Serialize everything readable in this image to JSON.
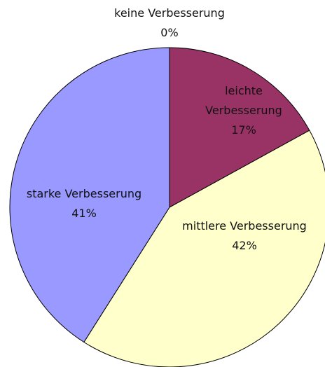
{
  "chart_data": {
    "type": "pie",
    "categories": [
      "keine Verbesserung",
      "leichte Verbesserung",
      "mittlere Verbesserung",
      "starke Verbesserung"
    ],
    "values": [
      0,
      17,
      42,
      41
    ],
    "value_labels": [
      "0%",
      "17%",
      "42%",
      "41%"
    ],
    "colors": [
      "#ffffff",
      "#993366",
      "#ffffcc",
      "#9999ff"
    ]
  }
}
